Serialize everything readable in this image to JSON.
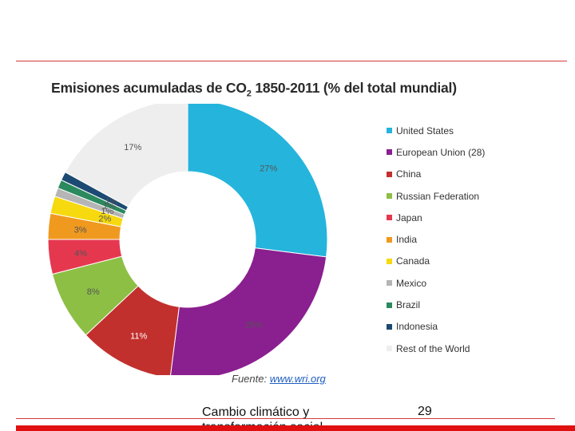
{
  "footer": {
    "text_line1": "Cambio climático y",
    "text_line2": "transformación social",
    "page_number": "29"
  },
  "source": {
    "label": "Fuente:",
    "link": "www.wri.org"
  },
  "chart_data": {
    "type": "pie",
    "donut": true,
    "title": "Emisiones acumuladas de CO₂ 1850-2011 (% del total mundial)",
    "title_parts": {
      "before": "Emisiones acumuladas de CO",
      "sub": "2",
      "after": " 1850-2011 (% del total mundial)"
    },
    "legend_position": "right",
    "series": [
      {
        "name": "United States",
        "value": 27,
        "label": "27%",
        "color": "#25b4dc"
      },
      {
        "name": "European Union (28)",
        "value": 25,
        "label": "25%",
        "color": "#8a1f8f"
      },
      {
        "name": "China",
        "value": 11,
        "label": "11%",
        "color": "#c2302e"
      },
      {
        "name": "Russian Federation",
        "value": 8,
        "label": "8%",
        "color": "#8dbf45"
      },
      {
        "name": "Japan",
        "value": 4,
        "label": "4%",
        "color": "#e5384f"
      },
      {
        "name": "India",
        "value": 3,
        "label": "3%",
        "color": "#f0991f"
      },
      {
        "name": "Canada",
        "value": 2,
        "label": "2%",
        "color": "#f6d90f"
      },
      {
        "name": "Mexico",
        "value": 1,
        "label": "1%",
        "color": "#b5b5b5"
      },
      {
        "name": "Brazil",
        "value": 1,
        "label": "1%",
        "color": "#2a8a5e"
      },
      {
        "name": "Indonesia",
        "value": 1,
        "label": "1%",
        "color": "#1c4a73"
      },
      {
        "name": "Rest of the World",
        "value": 17,
        "label": "17%",
        "color": "#eeeeee"
      }
    ]
  }
}
